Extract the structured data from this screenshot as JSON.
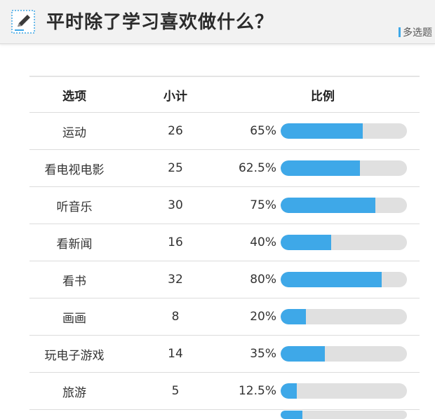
{
  "header": {
    "title": "平时除了学习喜欢做什么？",
    "tag": "多选题",
    "icon": "edit-pencil-icon",
    "accent": "#3ea8e8"
  },
  "chart_data": {
    "type": "table",
    "columns": [
      "选项",
      "小计",
      "比例"
    ],
    "rows": [
      {
        "option": "运动",
        "count": 26,
        "percent": "65%",
        "ratio": 0.65
      },
      {
        "option": "看电视电影",
        "count": 25,
        "percent": "62.5%",
        "ratio": 0.625
      },
      {
        "option": "听音乐",
        "count": 30,
        "percent": "75%",
        "ratio": 0.75
      },
      {
        "option": "看新闻",
        "count": 16,
        "percent": "40%",
        "ratio": 0.4
      },
      {
        "option": "看书",
        "count": 32,
        "percent": "80%",
        "ratio": 0.8
      },
      {
        "option": "画画",
        "count": 8,
        "percent": "20%",
        "ratio": 0.2
      },
      {
        "option": "玩电子游戏",
        "count": 14,
        "percent": "35%",
        "ratio": 0.35
      },
      {
        "option": "旅游",
        "count": 5,
        "percent": "12.5%",
        "ratio": 0.125
      }
    ],
    "bar_color": "#3ea8e8",
    "track_color": "#e0e0e0"
  }
}
